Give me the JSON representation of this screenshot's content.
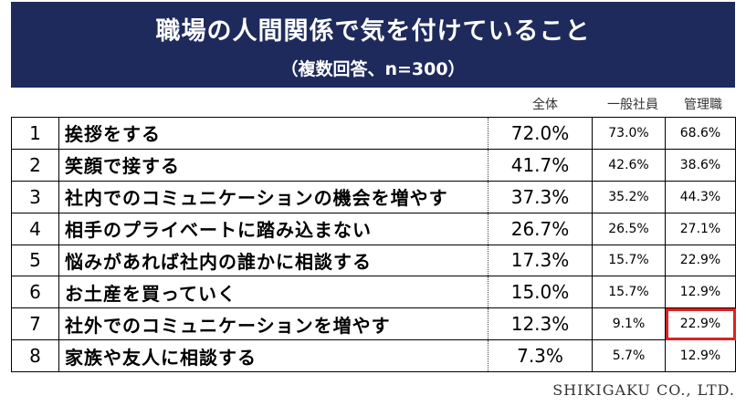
{
  "header": {
    "title": "職場の人間関係で気を付けていること",
    "subtitle": "（複数回答、n=300）"
  },
  "columns": {
    "total": "全体",
    "employee": "一般社員",
    "manager": "管理職"
  },
  "chart_data": {
    "type": "table",
    "title": "職場の人間関係で気を付けていること",
    "subtitle": "（複数回答、n=300）",
    "columns": [
      "全体",
      "一般社員",
      "管理職"
    ],
    "rows": [
      {
        "rank": "1",
        "item": "挨拶をする",
        "total": "72.0%",
        "employee": "73.0%",
        "manager": "68.6%"
      },
      {
        "rank": "2",
        "item": "笑顔で接する",
        "total": "41.7%",
        "employee": "42.6%",
        "manager": "38.6%"
      },
      {
        "rank": "3",
        "item": "社内でのコミュニケーションの機会を増やす",
        "total": "37.3%",
        "employee": "35.2%",
        "manager": "44.3%"
      },
      {
        "rank": "4",
        "item": "相手のプライベートに踏み込まない",
        "total": "26.7%",
        "employee": "26.5%",
        "manager": "27.1%"
      },
      {
        "rank": "5",
        "item": "悩みがあれば社内の誰かに相談する",
        "total": "17.3%",
        "employee": "15.7%",
        "manager": "22.9%"
      },
      {
        "rank": "6",
        "item": "お土産を買っていく",
        "total": "15.0%",
        "employee": "15.7%",
        "manager": "12.9%"
      },
      {
        "rank": "7",
        "item": "社外でのコミュニケーションを増やす",
        "total": "12.3%",
        "employee": "9.1%",
        "manager": "22.9%"
      },
      {
        "rank": "8",
        "item": "家族や友人に相談する",
        "total": "7.3%",
        "employee": "5.7%",
        "manager": "12.9%"
      }
    ],
    "highlight": {
      "row": 6,
      "column": "manager",
      "color": "#e02020"
    }
  },
  "footer": "SHIKIGAKU CO., LTD.",
  "colors": {
    "banner": "#1f2a5c",
    "highlight": "#e02020"
  }
}
